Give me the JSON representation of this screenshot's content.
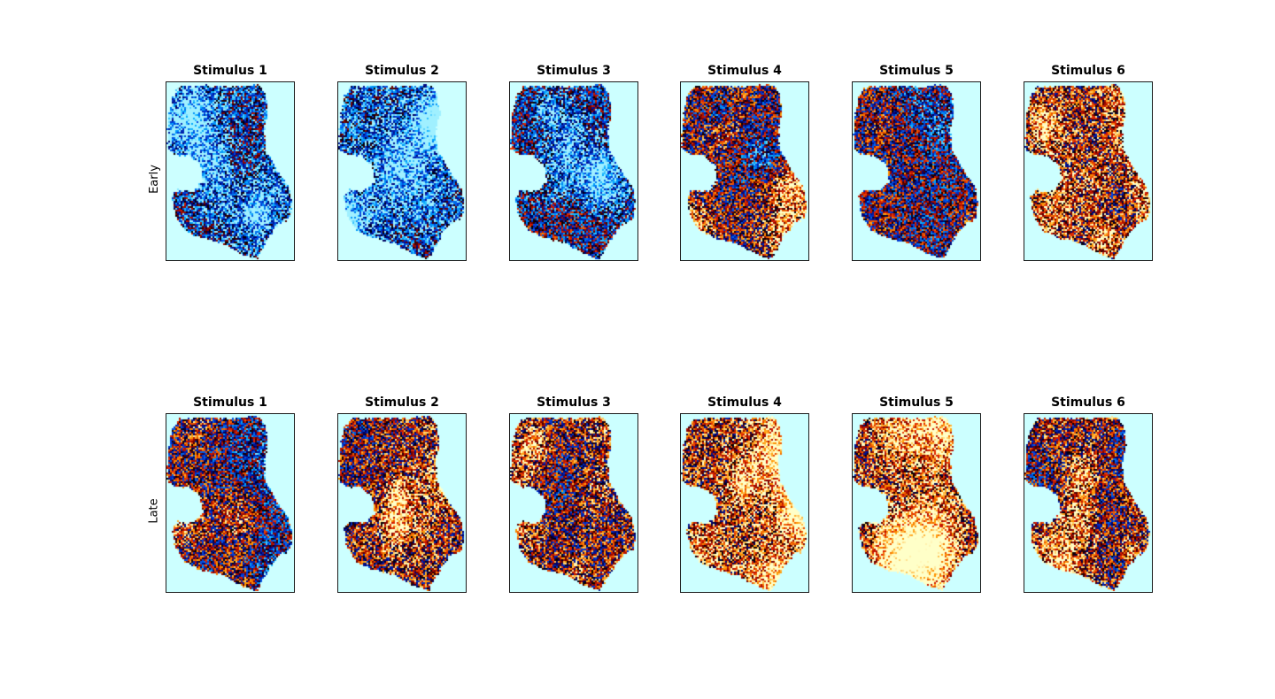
{
  "chart_data": {
    "type": "heatmap",
    "background_color": "#ccffff",
    "colormap": [
      "#000000",
      "#00007a",
      "#0040ff",
      "#00d8ff",
      "#ffffff",
      "#ff0000",
      "#800000",
      "#ffff80"
    ],
    "columns": [
      "Stimulus 1",
      "Stimulus 2",
      "Stimulus 3",
      "Stimulus 4",
      "Stimulus 5",
      "Stimulus 6"
    ],
    "rows": [
      {
        "label": "Early",
        "panels": [
          {
            "title": "Stimulus 1",
            "mean_activation": -0.35
          },
          {
            "title": "Stimulus 2",
            "mean_activation": -0.45
          },
          {
            "title": "Stimulus 3",
            "mean_activation": -0.2
          },
          {
            "title": "Stimulus 4",
            "mean_activation": 0.05
          },
          {
            "title": "Stimulus 5",
            "mean_activation": 0.0
          },
          {
            "title": "Stimulus 6",
            "mean_activation": 0.25
          }
        ]
      },
      {
        "label": "Late",
        "panels": [
          {
            "title": "Stimulus 1",
            "mean_activation": 0.0
          },
          {
            "title": "Stimulus 2",
            "mean_activation": 0.25
          },
          {
            "title": "Stimulus 3",
            "mean_activation": 0.2
          },
          {
            "title": "Stimulus 4",
            "mean_activation": 0.35
          },
          {
            "title": "Stimulus 5",
            "mean_activation": 0.35
          },
          {
            "title": "Stimulus 6",
            "mean_activation": 0.3
          }
        ]
      }
    ],
    "xlabel": "",
    "ylabel": "",
    "grid": false,
    "legend": "none"
  }
}
